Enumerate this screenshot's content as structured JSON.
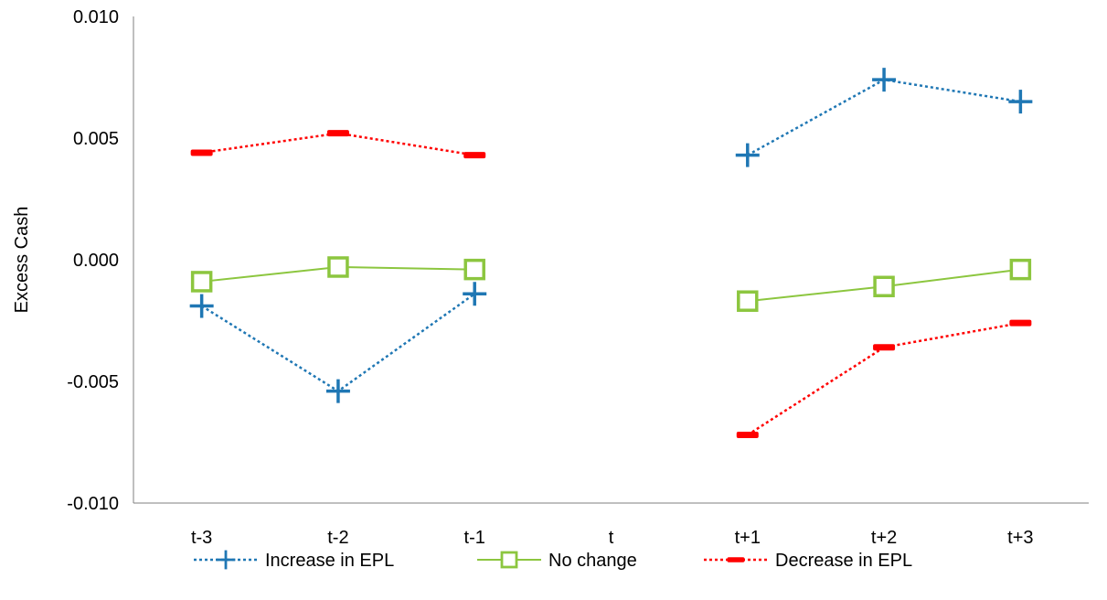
{
  "chart_data": {
    "type": "line",
    "title": "",
    "xlabel": "",
    "ylabel": "Excess Cash",
    "categories": [
      "t-3",
      "t-2",
      "t-1",
      "t",
      "t+1",
      "t+2",
      "t+3"
    ],
    "ylim": [
      -0.01,
      0.01
    ],
    "yticks": [
      "0.010",
      "0.005",
      "0.000",
      "-0.005",
      "-0.010"
    ],
    "ytick_values": [
      0.01,
      0.005,
      0.0,
      -0.005,
      -0.01
    ],
    "grid": false,
    "legend_position": "bottom",
    "series": [
      {
        "name": "Increase in EPL",
        "color": "#1f77b4",
        "line_style": "dotted",
        "marker": "plus",
        "values": [
          -0.0019,
          -0.0054,
          -0.0014,
          null,
          0.0043,
          0.0074,
          0.0065
        ]
      },
      {
        "name": "No change",
        "color": "#8cc63f",
        "line_style": "solid",
        "marker": "square-open",
        "values": [
          -0.0009,
          -0.0003,
          -0.0004,
          null,
          -0.0017,
          -0.0011,
          -0.0004
        ]
      },
      {
        "name": "Decrease in EPL",
        "color": "#ff0000",
        "line_style": "dotted",
        "marker": "dash",
        "values": [
          0.0044,
          0.0052,
          0.0043,
          null,
          -0.0072,
          -0.0036,
          -0.0026
        ]
      }
    ]
  }
}
